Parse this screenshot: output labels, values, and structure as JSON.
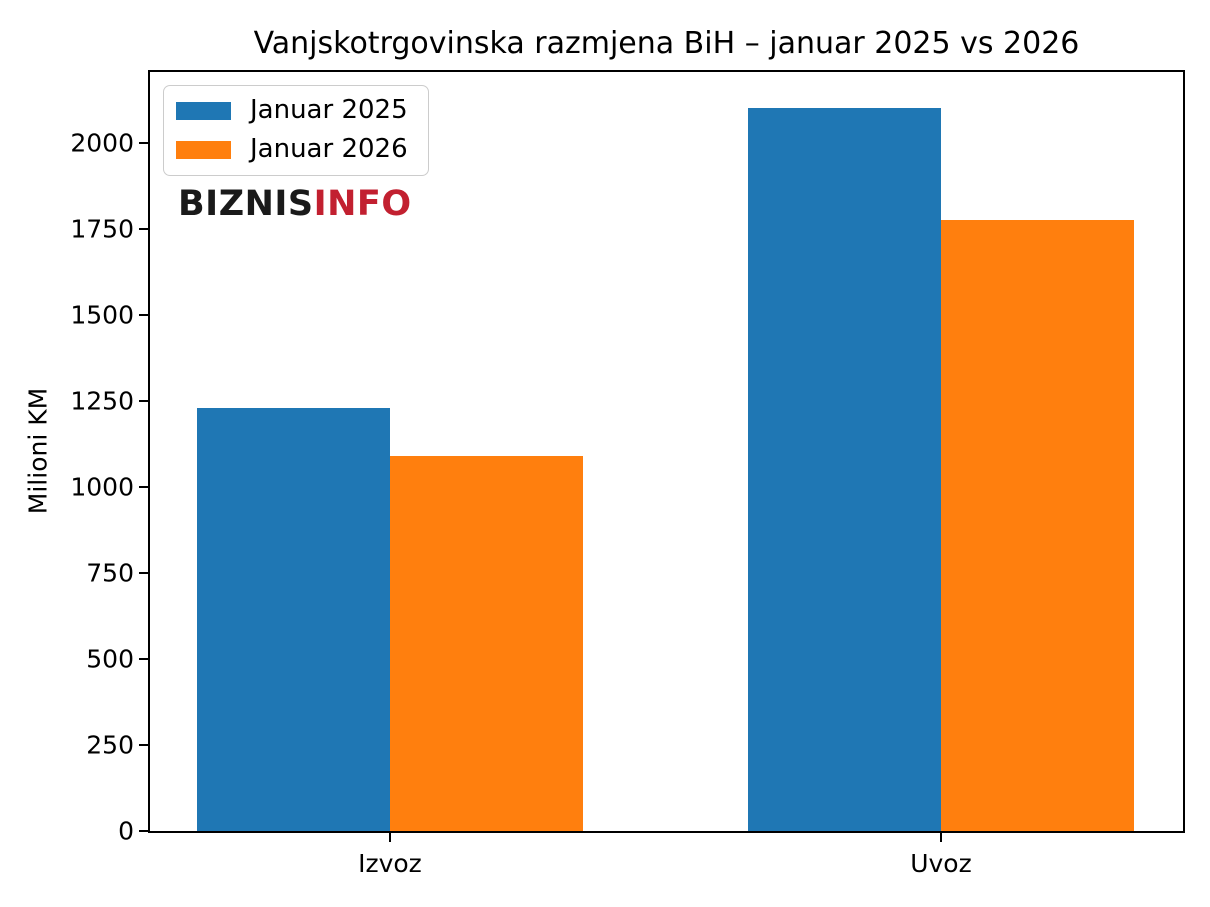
{
  "figure": {
    "background": "#ffffff"
  },
  "chart_data": {
    "type": "bar",
    "title": "Vanjskotrgovinska razmjena BiH – januar 2025 vs 2026",
    "xlabel": "",
    "ylabel": "Milioni KM",
    "categories": [
      "Izvoz",
      "Uvoz"
    ],
    "series": [
      {
        "name": "Januar 2025",
        "color": "#1f77b4",
        "values": [
          1230,
          2100
        ]
      },
      {
        "name": "Januar 2026",
        "color": "#ff7f0e",
        "values": [
          1090,
          1775
        ]
      }
    ],
    "ylim": [
      0,
      2205
    ],
    "yticks": [
      0,
      250,
      500,
      750,
      1000,
      1250,
      1500,
      1750,
      2000
    ],
    "grid": false,
    "legend_position": "upper-left"
  },
  "watermark": {
    "text_black": "BIZNIS",
    "text_red": "INFO",
    "black_color": "#1a1a1a",
    "red_color": "#c22030"
  }
}
